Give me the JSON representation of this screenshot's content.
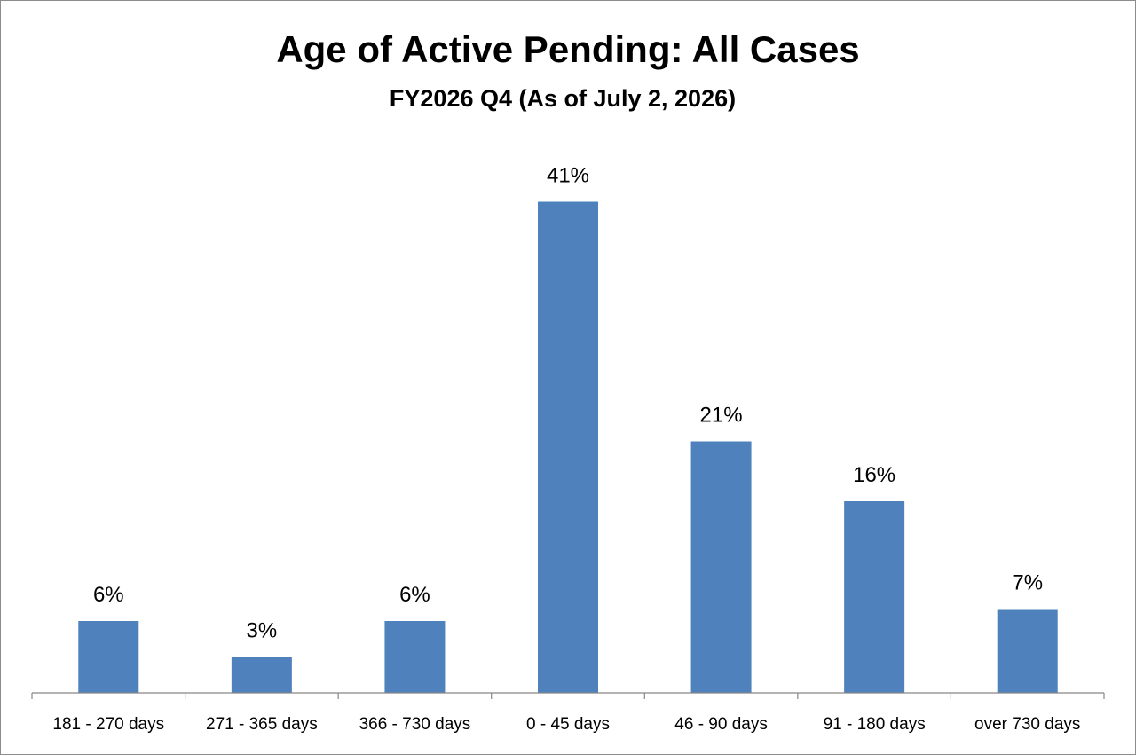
{
  "chart_data": {
    "type": "bar",
    "title": "Age of Active Pending: All Cases",
    "subtitle": "FY2026 Q4 (As of July 2, 2026)",
    "xlabel": "",
    "ylabel": "",
    "ylim": [
      0,
      44
    ],
    "grid": false,
    "bar_color": "#4f81bd",
    "categories": [
      "181 - 270 days",
      "271 - 365 days",
      "366 - 730 days",
      "0 - 45 days",
      "46 - 90 days",
      "91 - 180 days",
      "over 730 days"
    ],
    "values": [
      6,
      3,
      6,
      41,
      21,
      16,
      7
    ],
    "labels": [
      "6%",
      "3%",
      "6%",
      "41%",
      "21%",
      "16%",
      "7%"
    ]
  }
}
